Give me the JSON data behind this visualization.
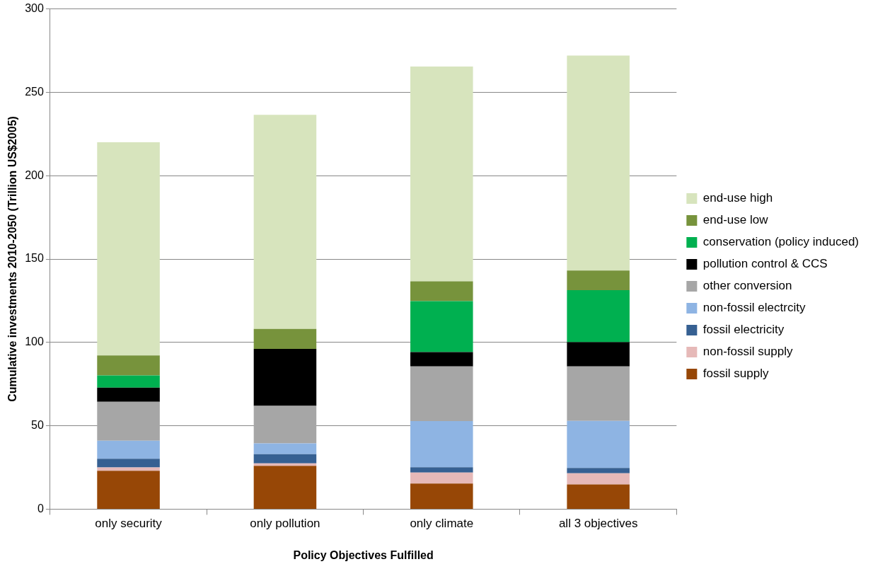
{
  "chart_data": {
    "type": "bar",
    "stacked": true,
    "xlabel": "Policy Objectives Fulfilled",
    "ylabel": "Cumulative investments 2010-2050 (Trillion US$2005)",
    "categories": [
      "only security",
      "only pollution",
      "only climate",
      "all 3 objectives"
    ],
    "series": [
      {
        "name": "fossil supply",
        "color": "#974706",
        "values": [
          23,
          26,
          15.3,
          14.8
        ]
      },
      {
        "name": "non-fossil supply",
        "color": "#e6b9b8",
        "values": [
          2,
          1.4,
          6.6,
          6.7
        ]
      },
      {
        "name": "fossil electricity",
        "color": "#366092",
        "values": [
          5.2,
          5.6,
          3.2,
          3.2
        ]
      },
      {
        "name": "non-fossil electrcity",
        "color": "#8eb4e3",
        "values": [
          10.8,
          6.4,
          27.7,
          28.2
        ]
      },
      {
        "name": "other conversion",
        "color": "#a6a6a6",
        "values": [
          23.4,
          22.5,
          32.8,
          32.7
        ]
      },
      {
        "name": "pollution control & CCS",
        "color": "#000000",
        "values": [
          8.5,
          34.2,
          8.6,
          14.5
        ]
      },
      {
        "name": "conservation (policy induced)",
        "color": "#00b050",
        "values": [
          7.3,
          0,
          30.5,
          31.2
        ]
      },
      {
        "name": "end-use low",
        "color": "#77933c",
        "values": [
          12,
          12,
          11.9,
          11.8
        ]
      },
      {
        "name": "end-use high",
        "color": "#d7e4bd",
        "values": [
          127.8,
          128.4,
          128.9,
          128.9
        ]
      }
    ],
    "ylim": [
      0,
      300
    ],
    "yticks": [
      0,
      50,
      100,
      150,
      200,
      250,
      300
    ],
    "grid": "y",
    "legend": "right"
  }
}
